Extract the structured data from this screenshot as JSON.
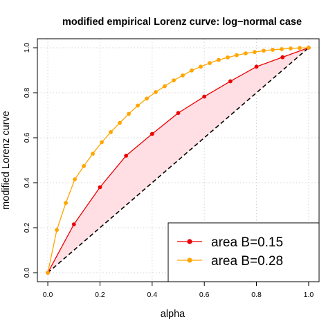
{
  "chart_data": {
    "type": "line",
    "title": "modified empirical Lorenz curve: log−normal case",
    "xlabel": "alpha",
    "ylabel": "modified Lorenz curve",
    "xlim": [
      -0.04,
      1.04
    ],
    "ylim": [
      -0.04,
      1.04
    ],
    "x_ticks": [
      0.0,
      0.2,
      0.4,
      0.6,
      0.8,
      1.0
    ],
    "x_tick_labels": [
      "0.0",
      "0.2",
      "0.4",
      "0.6",
      "0.8",
      "1.0"
    ],
    "y_ticks": [
      0.0,
      0.2,
      0.4,
      0.6,
      0.8,
      1.0
    ],
    "y_tick_labels": [
      "0.0",
      "0.2",
      "0.4",
      "0.6",
      "0.8",
      "1.0"
    ],
    "grid": true,
    "legend_position": "bottom-right",
    "shaded_area": "between red series and diagonal",
    "diagonal": {
      "x": [
        0,
        1
      ],
      "y": [
        0,
        1
      ],
      "style": "dashed",
      "color": "#000000"
    },
    "series": [
      {
        "name": "area B=0.15",
        "color": "#ee0000",
        "fill_color": "#ffdfe3",
        "x": [
          0.0,
          0.1,
          0.2,
          0.3,
          0.4,
          0.5,
          0.6,
          0.7,
          0.8,
          0.9,
          1.0
        ],
        "y": [
          0.0,
          0.215,
          0.38,
          0.52,
          0.617,
          0.71,
          0.783,
          0.851,
          0.916,
          0.958,
          1.0
        ]
      },
      {
        "name": "area B=0.28",
        "color": "#ffa500",
        "x": [
          0.0,
          0.0345,
          0.069,
          0.1035,
          0.138,
          0.1724,
          0.2069,
          0.2414,
          0.2759,
          0.3103,
          0.3448,
          0.3793,
          0.4138,
          0.4483,
          0.4828,
          0.5172,
          0.5517,
          0.5862,
          0.6207,
          0.6552,
          0.6897,
          0.7241,
          0.7586,
          0.7931,
          0.8276,
          0.8621,
          0.8966,
          0.931,
          0.9655,
          1.0
        ],
        "y": [
          0.0,
          0.19,
          0.31,
          0.415,
          0.474,
          0.529,
          0.58,
          0.625,
          0.666,
          0.706,
          0.743,
          0.774,
          0.803,
          0.829,
          0.855,
          0.877,
          0.899,
          0.916,
          0.932,
          0.946,
          0.957,
          0.967,
          0.975,
          0.981,
          0.987,
          0.991,
          0.994,
          0.997,
          0.999,
          1.0
        ]
      }
    ]
  }
}
